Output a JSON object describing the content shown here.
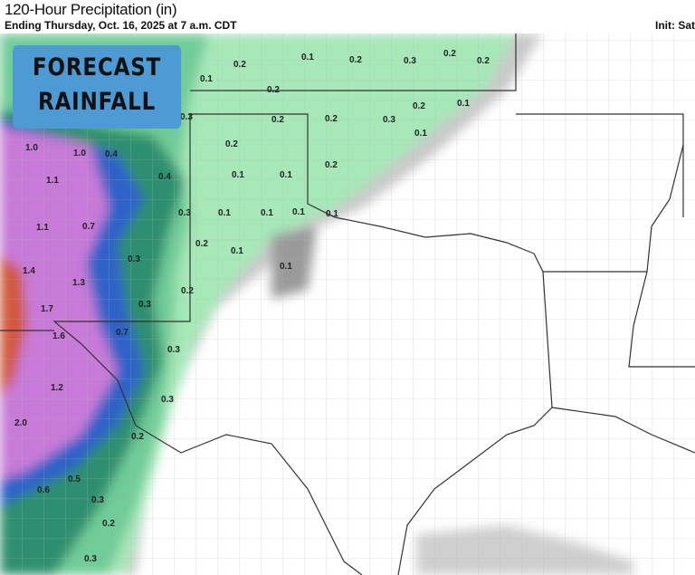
{
  "header": {
    "title": "120-Hour Precipitation (in)",
    "subtitle": "Ending Thursday, Oct. 16, 2025 at 7 a.m. CDT",
    "init": "Init: Sat"
  },
  "badge": {
    "line1": "FORECAST",
    "line2": "RAINFALL"
  },
  "colors": {
    "badge": "#4d9ad4",
    "light_green": "#a6e8b8",
    "mid_green": "#5fbf8a",
    "dark_green": "#2f8f70",
    "blue": "#2f62c8",
    "purple": "#c87ad8",
    "red": "#d2583c",
    "gray": "#9a9a9a"
  },
  "contour_labels": [
    "0.1",
    "0.2",
    "0.1",
    "0.2",
    "0.2",
    "0.3",
    "0.2",
    "0.2",
    "0.1",
    "0.2",
    "0.3",
    "0.2",
    "0.2",
    "0.3",
    "0.1",
    "1.0",
    "1.0",
    "0.4",
    "0.2",
    "0.2",
    "0.4",
    "0.1",
    "0.1",
    "1.1",
    "0.3",
    "0.1",
    "0.1",
    "0.1",
    "0.1",
    "1.1",
    "0.7",
    "0.2",
    "0.1",
    "0.3",
    "0.1",
    "1.4",
    "1.3",
    "0.2",
    "0.3",
    "1.7",
    "1.6",
    "0.7",
    "0.3",
    "1.2",
    "0.3",
    "2.0",
    "0.2",
    "0.5",
    "0.6",
    "0.3",
    "0.2",
    "0.3"
  ]
}
